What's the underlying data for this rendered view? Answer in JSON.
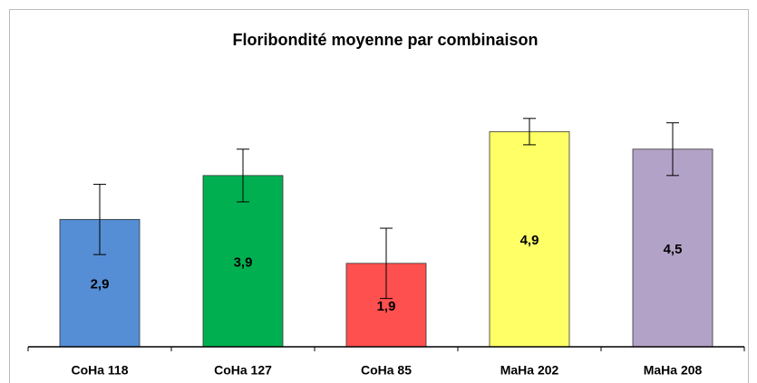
{
  "chart_data": {
    "type": "bar",
    "title": "Floribondité moyenne par combinaison",
    "categories": [
      "CoHa 118",
      "CoHa 127",
      "CoHa 85",
      "MaHa 202",
      "MaHa 208"
    ],
    "values": [
      2.9,
      3.9,
      1.9,
      4.9,
      4.5
    ],
    "value_labels": [
      "2,9",
      "3,9",
      "1,9",
      "4,9",
      "4,5"
    ],
    "errors": [
      0.8,
      0.6,
      0.8,
      0.3,
      0.6
    ],
    "colors": [
      "#558ed5",
      "#00b050",
      "#ff5050",
      "#ffff66",
      "#b3a2c7"
    ],
    "ylim": [
      0,
      6
    ]
  }
}
